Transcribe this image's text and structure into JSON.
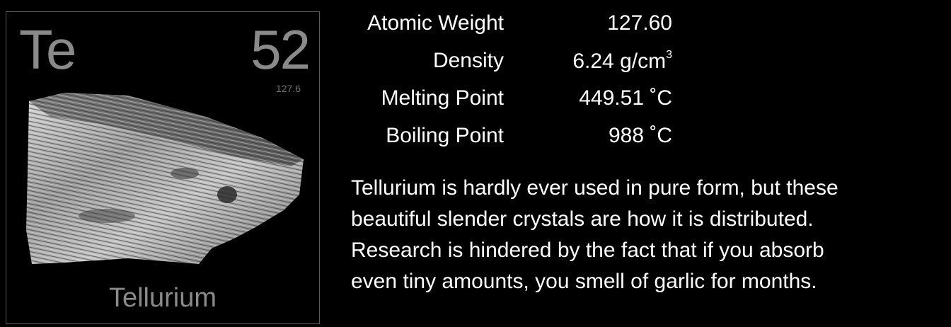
{
  "element": {
    "symbol": "Te",
    "number": "52",
    "weight_small": "127.6",
    "name": "Tellurium"
  },
  "properties": [
    {
      "label": "Atomic Weight",
      "value": "127.60",
      "unit": ""
    },
    {
      "label": "Density",
      "value": "6.24",
      "unit": "g/cm",
      "sup": "3"
    },
    {
      "label": "Melting Point",
      "value": "449.51 ˚C",
      "unit": ""
    },
    {
      "label": "Boiling Point",
      "value": "988 ˚C",
      "unit": ""
    }
  ],
  "description": {
    "lines": [
      "Tellurium is hardly ever used in pure form, but these",
      "beautiful slender crystals are how it is distributed.",
      "Research is hindered by the fact that if you absorb",
      "even tiny amounts, you smell of garlic for months."
    ]
  },
  "colors": {
    "background": "#000000",
    "tile_text": "#8a8a8a",
    "tile_border": "#5a5a5a",
    "text": "#ffffff"
  }
}
